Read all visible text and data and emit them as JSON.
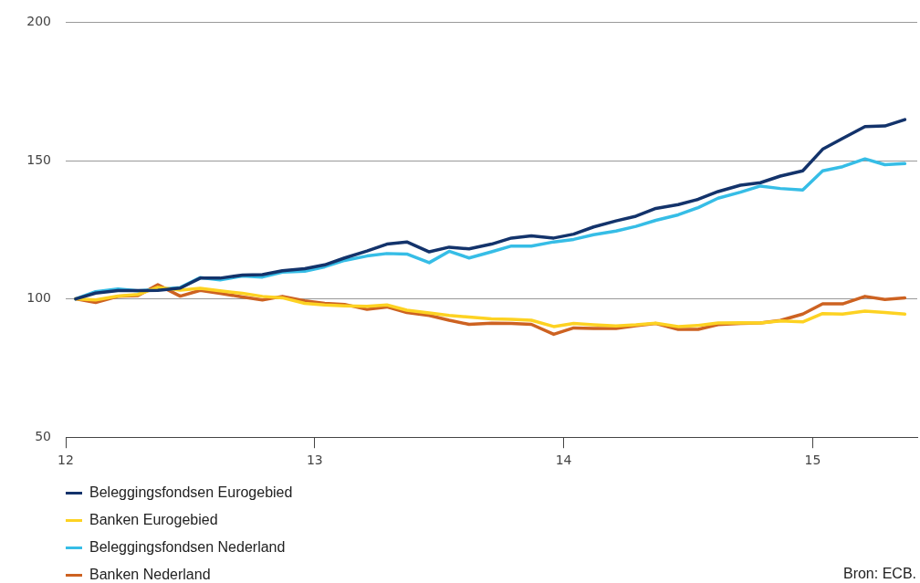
{
  "chart_data": {
    "type": "line",
    "x": [
      12.04,
      12.12,
      12.21,
      12.29,
      12.37,
      12.46,
      12.54,
      12.62,
      12.71,
      12.79,
      12.87,
      12.96,
      13.04,
      13.12,
      13.21,
      13.29,
      13.37,
      13.46,
      13.54,
      13.62,
      13.71,
      13.79,
      13.87,
      13.96,
      14.04,
      14.12,
      14.21,
      14.29,
      14.37,
      14.46,
      14.54,
      14.62,
      14.71,
      14.79,
      14.87,
      14.96,
      15.04,
      15.12,
      15.21,
      15.29,
      15.37
    ],
    "series": [
      {
        "name": "Beleggingsfondsen Eurogebied",
        "color": "#13336b",
        "values": [
          100,
          102.1,
          103,
          103,
          103.1,
          103.9,
          107.5,
          107.5,
          108.6,
          108.8,
          110.2,
          110.9,
          112.3,
          114.8,
          117.3,
          119.8,
          120.6,
          117,
          118.7,
          118.1,
          119.8,
          122,
          122.8,
          122,
          123.4,
          126,
          128.2,
          129.9,
          132.7,
          134.1,
          136,
          138.8,
          141.1,
          142,
          144.4,
          146.3,
          154.1,
          158,
          162.3,
          162.5,
          164.8
        ]
      },
      {
        "name": "Banken Eurogebied",
        "color": "#fdd222",
        "values": [
          100,
          99.6,
          101,
          101.6,
          104.2,
          103.2,
          103.8,
          102.9,
          102,
          100.9,
          100.4,
          98.4,
          97.8,
          97.5,
          97.3,
          97.8,
          95.9,
          94.9,
          94,
          93.4,
          92.8,
          92.6,
          92.3,
          90,
          91.1,
          90.6,
          90.2,
          90.6,
          91.2,
          90,
          90.4,
          91.3,
          91.4,
          91.3,
          92,
          91.7,
          94.7,
          94.5,
          95.6,
          95.1,
          94.5
        ]
      },
      {
        "name": "Beleggingsfondsen Nederland",
        "color": "#36bde6",
        "values": [
          100,
          102.6,
          103.6,
          102.9,
          103.4,
          104.1,
          107.7,
          106.9,
          108.3,
          107.9,
          109.7,
          110,
          111.6,
          113.9,
          115.5,
          116.4,
          116.2,
          113.1,
          117.2,
          114.8,
          117,
          119.1,
          119.1,
          120.6,
          121.5,
          123.2,
          124.5,
          126.2,
          128.4,
          130.4,
          133,
          136.4,
          138.6,
          140.8,
          139.9,
          139.4,
          146.3,
          147.8,
          150.6,
          148.5,
          148.9
        ]
      },
      {
        "name": "Banken Nederland",
        "color": "#cd6221",
        "values": [
          100,
          98.7,
          100.9,
          101.2,
          105.1,
          101,
          103.1,
          102,
          100.7,
          99.6,
          100.9,
          99.3,
          98.4,
          98,
          96.2,
          97.1,
          95.1,
          94,
          92.3,
          90.8,
          91.2,
          91.1,
          90.8,
          87.2,
          89.5,
          89.3,
          89.3,
          90.3,
          91.1,
          89,
          89,
          90.7,
          91.1,
          91.3,
          92.2,
          94.5,
          98.2,
          98.2,
          100.9,
          99.8,
          100.4
        ]
      }
    ],
    "xlim": [
      12,
      15.42
    ],
    "xticks": [
      12,
      13,
      14,
      15
    ],
    "ylim": [
      50,
      200
    ],
    "yticks": [
      50,
      100,
      150,
      200
    ],
    "grid": "y",
    "legend": "bottom left",
    "marker": "none",
    "line_style": "solid",
    "annotations": [
      "Bron: ECB."
    ]
  }
}
